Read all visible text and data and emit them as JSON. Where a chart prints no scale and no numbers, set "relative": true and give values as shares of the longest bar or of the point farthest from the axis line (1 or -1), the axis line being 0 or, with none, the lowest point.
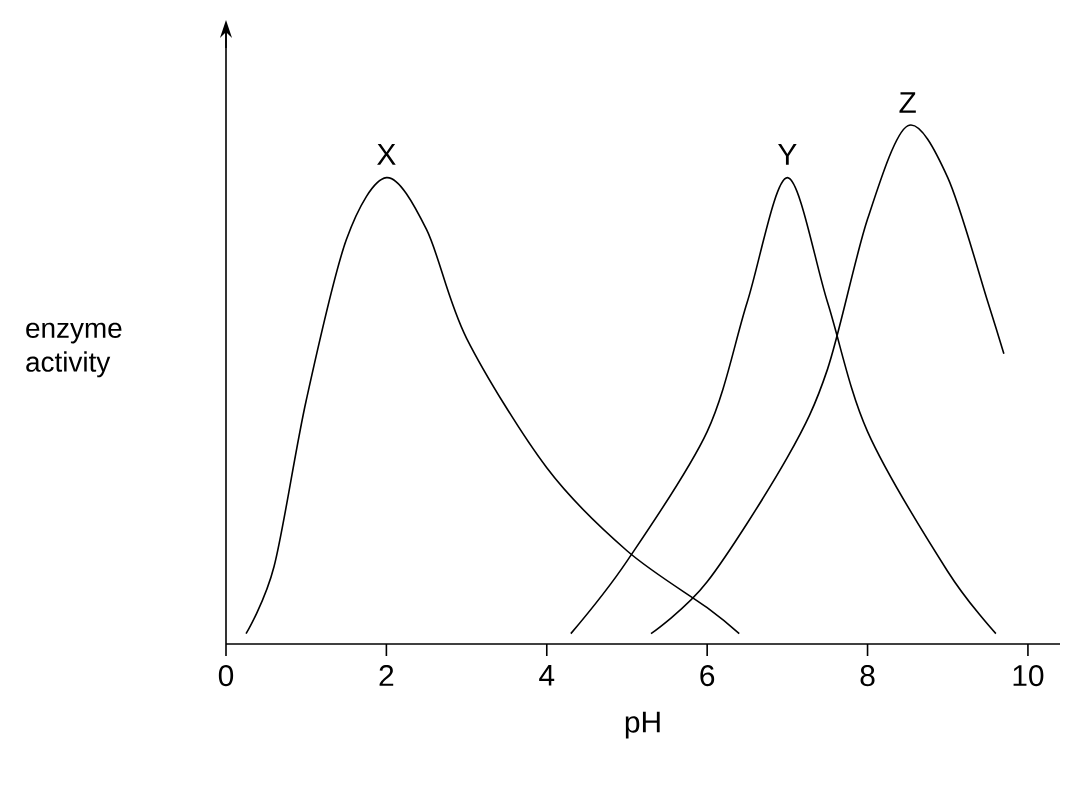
{
  "chart_data": {
    "type": "line",
    "relative": true,
    "xlabel": "pH",
    "ylabel": "enzyme activity",
    "xlim": [
      0,
      10.4
    ],
    "xticks": [
      0,
      2,
      4,
      6,
      8,
      10
    ],
    "series": [
      {
        "name": "X",
        "color": "#000000",
        "x": [
          0.25,
          0.6,
          1,
          1.5,
          2,
          2.5,
          3,
          4,
          5,
          6,
          6.4
        ],
        "values": [
          0.02,
          0.15,
          0.47,
          0.78,
          0.9,
          0.8,
          0.59,
          0.34,
          0.18,
          0.07,
          0.02
        ]
      },
      {
        "name": "Y",
        "color": "#000000",
        "x": [
          4.3,
          5,
          6,
          6.5,
          7,
          7.5,
          8,
          9,
          9.6
        ],
        "values": [
          0.02,
          0.16,
          0.41,
          0.66,
          0.9,
          0.66,
          0.41,
          0.14,
          0.02
        ]
      },
      {
        "name": "Z",
        "color": "#000000",
        "x": [
          5.3,
          6,
          7,
          7.5,
          8,
          8.5,
          9,
          9.5,
          9.7
        ],
        "values": [
          0.02,
          0.12,
          0.36,
          0.53,
          0.82,
          1.0,
          0.9,
          0.66,
          0.56
        ]
      }
    ]
  }
}
